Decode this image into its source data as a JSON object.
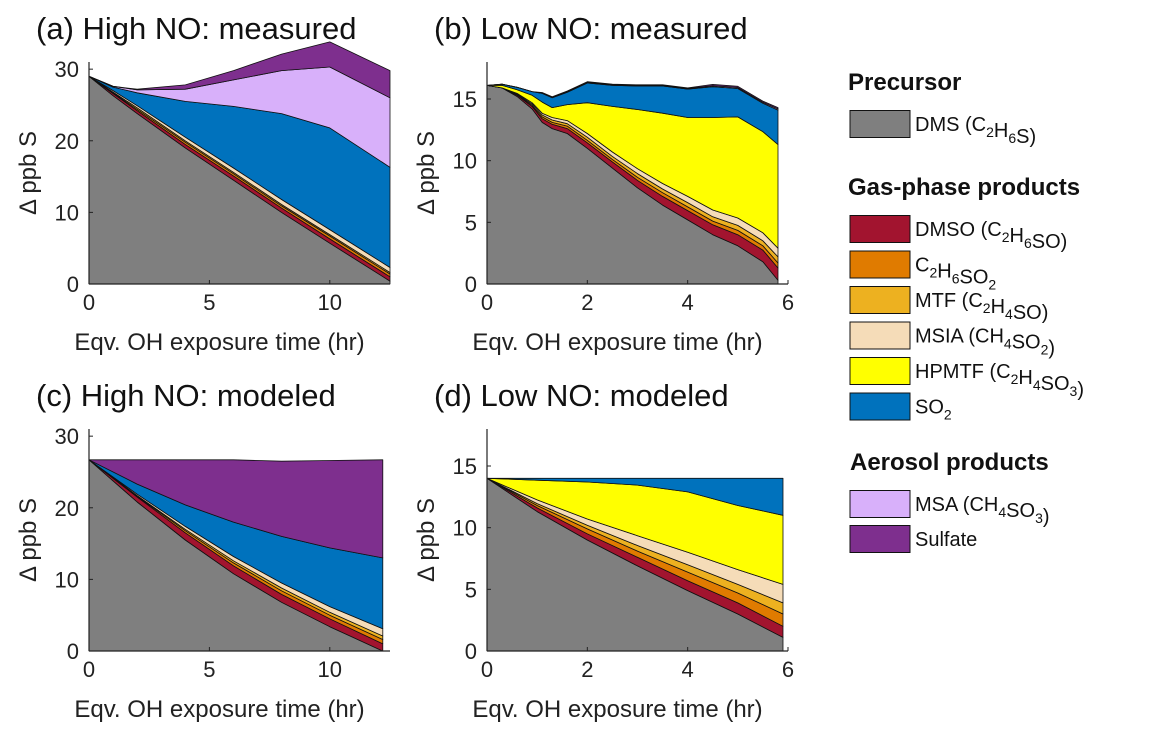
{
  "colors": {
    "DMS": "#7f7f7f",
    "DMSO": "#a2142f",
    "C2H6SO2": "#e07b00",
    "MTF": "#edb120",
    "MSIA": "#f5dcb8",
    "HPMTF": "#ffff00",
    "SO2": "#0072bd",
    "MSA": "#d8b0fa",
    "Sulfate": "#7e2f8e"
  },
  "legend": {
    "groups": [
      {
        "heading": "Precursor",
        "items": [
          {
            "key": "DMS",
            "name": "DMS",
            "formula": [
              [
                "(",
                ""
              ],
              [
                "C",
                "2"
              ],
              [
                "H",
                "6"
              ],
              [
                "S)",
                ""
              ]
            ]
          }
        ]
      },
      {
        "heading": "Gas-phase products",
        "items": [
          {
            "key": "DMSO",
            "name": "DMSO",
            "formula": [
              [
                "(",
                ""
              ],
              [
                "C",
                "2"
              ],
              [
                "H",
                "6"
              ],
              [
                "SO)",
                ""
              ]
            ]
          },
          {
            "key": "C2H6SO2",
            "name": "",
            "formula": [
              [
                "C",
                "2"
              ],
              [
                "H",
                "6"
              ],
              [
                "SO",
                "2"
              ]
            ]
          },
          {
            "key": "MTF",
            "name": "MTF",
            "formula": [
              [
                "(",
                ""
              ],
              [
                "C",
                "2"
              ],
              [
                "H",
                "4"
              ],
              [
                "SO)",
                ""
              ]
            ]
          },
          {
            "key": "MSIA",
            "name": "MSIA",
            "formula": [
              [
                "(",
                ""
              ],
              [
                "CH",
                "4"
              ],
              [
                "SO",
                "2"
              ],
              [
                ")",
                ""
              ]
            ]
          },
          {
            "key": "HPMTF",
            "name": "HPMTF",
            "formula": [
              [
                "(",
                ""
              ],
              [
                "C",
                "2"
              ],
              [
                "H",
                "4"
              ],
              [
                "SO",
                "3"
              ],
              [
                ")",
                ""
              ]
            ]
          },
          {
            "key": "SO2",
            "name": "",
            "formula": [
              [
                "SO",
                "2"
              ]
            ]
          }
        ]
      },
      {
        "heading": "Aerosol products",
        "items": [
          {
            "key": "MSA",
            "name": "MSA",
            "formula": [
              [
                "(",
                ""
              ],
              [
                "CH",
                "4"
              ],
              [
                "SO",
                "3"
              ],
              [
                ")",
                ""
              ]
            ]
          },
          {
            "key": "Sulfate",
            "name": "Sulfate",
            "formula": []
          }
        ]
      }
    ]
  },
  "chart_data": [
    {
      "id": "a",
      "type": "area",
      "stacked": true,
      "title": "(a) High NO: measured",
      "xlabel": "Eqv. OH exposure time (hr)",
      "ylabel": "Δ ppb S",
      "xlim": [
        0,
        12.5
      ],
      "ylim": [
        0,
        31
      ],
      "xticks": [
        0,
        5,
        10
      ],
      "yticks": [
        0,
        10,
        20,
        30
      ],
      "x": [
        0,
        1,
        2,
        4,
        6,
        8,
        10,
        12.5
      ],
      "series": [
        {
          "key": "DMS",
          "values": [
            29,
            26.3,
            23.8,
            19,
            14.5,
            10,
            5.7,
            0.4
          ]
        },
        {
          "key": "DMSO",
          "values": [
            0,
            0.3,
            0.4,
            0.5,
            0.6,
            0.6,
            0.6,
            0.6
          ]
        },
        {
          "key": "C2H6SO2",
          "values": [
            0,
            0.1,
            0.2,
            0.3,
            0.3,
            0.3,
            0.4,
            0.4
          ]
        },
        {
          "key": "MTF",
          "values": [
            0,
            0.1,
            0.2,
            0.2,
            0.2,
            0.2,
            0.2,
            0.2
          ]
        },
        {
          "key": "MSIA",
          "values": [
            0,
            0.2,
            0.3,
            0.5,
            0.6,
            0.7,
            0.7,
            0.7
          ]
        },
        {
          "key": "HPMTF",
          "values": [
            0,
            0,
            0,
            0,
            0,
            0,
            0,
            0
          ]
        },
        {
          "key": "SO2",
          "values": [
            0,
            0.5,
            1.8,
            5,
            8.6,
            12,
            14.2,
            14
          ]
        },
        {
          "key": "MSA",
          "values": [
            0,
            0.1,
            0.4,
            1.7,
            3.7,
            6,
            8.5,
            9.7
          ]
        },
        {
          "key": "Sulfate",
          "values": [
            0,
            0,
            0.1,
            0.6,
            1.3,
            2.3,
            3.5,
            3.8
          ]
        }
      ]
    },
    {
      "id": "b",
      "type": "area",
      "stacked": true,
      "title": "(b) Low NO: measured",
      "xlabel": "Eqv. OH exposure time (hr)",
      "ylabel": "Δ ppb S",
      "xlim": [
        0,
        6
      ],
      "ylim": [
        0,
        18
      ],
      "xticks": [
        0,
        2,
        4,
        6
      ],
      "yticks": [
        0,
        5,
        10,
        15
      ],
      "x": [
        0,
        0.3,
        0.6,
        0.9,
        1.1,
        1.3,
        1.6,
        2,
        2.5,
        3,
        3.5,
        4,
        4.5,
        5,
        5.5,
        5.8
      ],
      "series": [
        {
          "key": "DMS",
          "values": [
            16.1,
            15.9,
            15.2,
            14.2,
            13.1,
            12.6,
            12.2,
            11,
            9.4,
            7.8,
            6.4,
            5.2,
            4,
            3.1,
            1.8,
            0.3
          ]
        },
        {
          "key": "DMSO",
          "values": [
            0,
            0,
            0.1,
            0.2,
            0.3,
            0.35,
            0.4,
            0.45,
            0.5,
            0.6,
            0.7,
            0.75,
            0.8,
            0.9,
            0.95,
            1
          ]
        },
        {
          "key": "C2H6SO2",
          "values": [
            0,
            0,
            0.05,
            0.1,
            0.15,
            0.15,
            0.2,
            0.2,
            0.2,
            0.25,
            0.3,
            0.3,
            0.3,
            0.35,
            0.35,
            0.4
          ]
        },
        {
          "key": "MTF",
          "values": [
            0,
            0,
            0.05,
            0.1,
            0.15,
            0.2,
            0.2,
            0.25,
            0.25,
            0.3,
            0.3,
            0.35,
            0.35,
            0.4,
            0.4,
            0.5
          ]
        },
        {
          "key": "MSIA",
          "values": [
            0,
            0,
            0.05,
            0.1,
            0.15,
            0.2,
            0.25,
            0.3,
            0.35,
            0.4,
            0.45,
            0.5,
            0.55,
            0.6,
            0.65,
            0.7
          ]
        },
        {
          "key": "HPMTF",
          "values": [
            0,
            0.2,
            0.3,
            0.6,
            0.9,
            0.8,
            1.3,
            2.5,
            3.7,
            4.8,
            5.7,
            6.4,
            7.5,
            8.2,
            8.2,
            8.4
          ]
        },
        {
          "key": "SO2",
          "values": [
            0,
            0.1,
            0.2,
            0.3,
            0.7,
            0.8,
            1,
            1.6,
            1.7,
            1.9,
            2.2,
            2.3,
            2.5,
            2.3,
            2.3,
            2.8
          ]
        },
        {
          "key": "MSA",
          "values": [
            0,
            0,
            0,
            0,
            0.03,
            0.03,
            0.05,
            0.05,
            0.05,
            0.05,
            0.05,
            0.05,
            0.08,
            0.08,
            0.08,
            0.1
          ]
        },
        {
          "key": "Sulfate",
          "values": [
            0,
            0,
            0,
            0,
            0.05,
            0.05,
            0.05,
            0.05,
            0.05,
            0.05,
            0.05,
            0.05,
            0.1,
            0.1,
            0.1,
            0.1
          ]
        }
      ]
    },
    {
      "id": "c",
      "type": "area",
      "stacked": true,
      "title": "(c) High NO: modeled",
      "xlabel": "Eqv. OH exposure time (hr)",
      "ylabel": "Δ ppb S",
      "xlim": [
        0,
        12.5
      ],
      "ylim": [
        0,
        31
      ],
      "xticks": [
        0,
        5,
        10
      ],
      "yticks": [
        0,
        10,
        20,
        30
      ],
      "x": [
        0,
        2,
        4,
        6,
        8,
        10,
        12.2
      ],
      "series": [
        {
          "key": "DMS",
          "values": [
            26.7,
            20.8,
            15.5,
            10.8,
            6.8,
            3.4,
            0
          ]
        },
        {
          "key": "DMSO",
          "values": [
            0,
            0.7,
            1,
            1.1,
            1.1,
            1.1,
            1
          ]
        },
        {
          "key": "C2H6SO2",
          "values": [
            0,
            0.1,
            0.3,
            0.4,
            0.5,
            0.5,
            0.6
          ]
        },
        {
          "key": "MTF",
          "values": [
            0,
            0.1,
            0.2,
            0.3,
            0.4,
            0.4,
            0.5
          ]
        },
        {
          "key": "MSIA",
          "values": [
            0,
            0.2,
            0.4,
            0.6,
            0.7,
            0.8,
            1
          ]
        },
        {
          "key": "HPMTF",
          "values": [
            0,
            0,
            0,
            0,
            0,
            0,
            0
          ]
        },
        {
          "key": "SO2",
          "values": [
            0,
            1.4,
            3,
            4.8,
            6.5,
            8.2,
            9.9
          ]
        },
        {
          "key": "MSA",
          "values": [
            0,
            0,
            0,
            0,
            0,
            0,
            0
          ]
        },
        {
          "key": "Sulfate",
          "values": [
            0,
            3.4,
            6.3,
            8.7,
            10.5,
            12.2,
            13.7
          ]
        }
      ]
    },
    {
      "id": "d",
      "type": "area",
      "stacked": true,
      "title": "(d) Low NO: modeled",
      "xlabel": "Eqv. OH exposure time (hr)",
      "ylabel": "Δ ppb S",
      "xlim": [
        0,
        6
      ],
      "ylim": [
        0,
        18
      ],
      "xticks": [
        0,
        2,
        4,
        6
      ],
      "yticks": [
        0,
        5,
        10,
        15
      ],
      "x": [
        0,
        1,
        2,
        3,
        4,
        5,
        5.9
      ],
      "series": [
        {
          "key": "DMS",
          "values": [
            14,
            11.3,
            9,
            6.9,
            4.9,
            3,
            1.1
          ]
        },
        {
          "key": "DMSO",
          "values": [
            0,
            0.3,
            0.5,
            0.7,
            0.8,
            0.9,
            0.9
          ]
        },
        {
          "key": "C2H6SO2",
          "values": [
            0,
            0.2,
            0.4,
            0.5,
            0.7,
            0.8,
            1
          ]
        },
        {
          "key": "MTF",
          "values": [
            0,
            0.15,
            0.3,
            0.45,
            0.6,
            0.7,
            0.9
          ]
        },
        {
          "key": "MSIA",
          "values": [
            0,
            0.3,
            0.5,
            0.8,
            1,
            1.2,
            1.5
          ]
        },
        {
          "key": "HPMTF",
          "values": [
            0,
            1.6,
            3,
            4.1,
            4.9,
            5.2,
            5.6
          ]
        },
        {
          "key": "SO2",
          "values": [
            0,
            0.15,
            0.3,
            0.55,
            1.1,
            2.2,
            3
          ]
        },
        {
          "key": "MSA",
          "values": [
            0,
            0,
            0,
            0,
            0,
            0,
            0
          ]
        },
        {
          "key": "Sulfate",
          "values": [
            0,
            0,
            0,
            0,
            0,
            0,
            0
          ]
        }
      ]
    }
  ]
}
